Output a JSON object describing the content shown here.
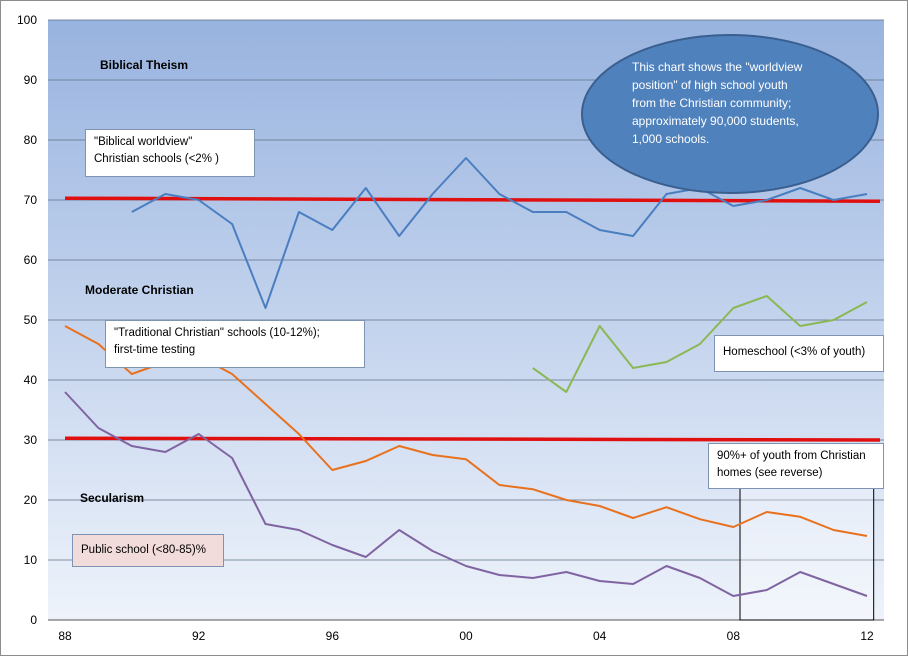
{
  "chart_data": {
    "type": "line",
    "xlim": [
      1988,
      2012
    ],
    "ylim": [
      0,
      100
    ],
    "x_ticks": [
      {
        "value": 1988,
        "label": "88"
      },
      {
        "value": 1992,
        "label": "92"
      },
      {
        "value": 1996,
        "label": "96"
      },
      {
        "value": 2000,
        "label": "00"
      },
      {
        "value": 2004,
        "label": "04"
      },
      {
        "value": 2008,
        "label": "08"
      },
      {
        "value": 2012,
        "label": "12"
      }
    ],
    "y_ticks": [
      0,
      10,
      20,
      30,
      40,
      50,
      60,
      70,
      80,
      90,
      100
    ],
    "grid": true,
    "series": [
      {
        "color": "#4a7ec0",
        "points": [
          [
            1990,
            68
          ],
          [
            1991,
            71
          ],
          [
            1992,
            70
          ],
          [
            1993,
            66
          ],
          [
            1994,
            52
          ],
          [
            1995,
            68
          ],
          [
            1996,
            65
          ],
          [
            1997,
            72
          ],
          [
            1998,
            64
          ],
          [
            1999,
            71
          ],
          [
            2000,
            77
          ],
          [
            2001,
            71
          ],
          [
            2002,
            68
          ],
          [
            2003,
            68
          ],
          [
            2004,
            65
          ],
          [
            2005,
            64
          ],
          [
            2006,
            71
          ],
          [
            2007,
            72
          ],
          [
            2008,
            69
          ],
          [
            2009,
            70
          ],
          [
            2010,
            72
          ],
          [
            2011,
            70
          ],
          [
            2012,
            71
          ]
        ]
      },
      {
        "color": "#e8711e",
        "points": [
          [
            1988,
            49
          ],
          [
            1989,
            46
          ],
          [
            1990,
            41
          ],
          [
            1991,
            43
          ],
          [
            1992,
            44
          ],
          [
            1993,
            41
          ],
          [
            1994,
            36
          ],
          [
            1995,
            31
          ],
          [
            1996,
            25
          ],
          [
            1997,
            26.5
          ],
          [
            1998,
            29
          ],
          [
            1999,
            27.5
          ],
          [
            2000,
            26.8
          ],
          [
            2001,
            22.5
          ],
          [
            2002,
            21.8
          ],
          [
            2003,
            20
          ],
          [
            2004,
            19
          ],
          [
            2005,
            17
          ],
          [
            2006,
            18.8
          ],
          [
            2007,
            16.8
          ],
          [
            2008,
            15.5
          ],
          [
            2009,
            18
          ],
          [
            2010,
            17.2
          ],
          [
            2011,
            15
          ],
          [
            2012,
            14
          ]
        ]
      },
      {
        "color": "#8064a2",
        "points": [
          [
            1988,
            38
          ],
          [
            1989,
            32
          ],
          [
            1990,
            29
          ],
          [
            1991,
            28
          ],
          [
            1992,
            31
          ],
          [
            1993,
            27
          ],
          [
            1994,
            16
          ],
          [
            1995,
            15
          ],
          [
            1996,
            12.5
          ],
          [
            1997,
            10.5
          ],
          [
            1998,
            15
          ],
          [
            1999,
            11.5
          ],
          [
            2000,
            9
          ],
          [
            2001,
            7.5
          ],
          [
            2002,
            7
          ],
          [
            2003,
            8
          ],
          [
            2004,
            6.5
          ],
          [
            2005,
            6
          ],
          [
            2006,
            9
          ],
          [
            2007,
            7
          ],
          [
            2008,
            4
          ],
          [
            2009,
            5
          ],
          [
            2010,
            8
          ],
          [
            2011,
            6
          ],
          [
            2012,
            4
          ]
        ]
      },
      {
        "color": "#8ab854",
        "points": [
          [
            2002,
            42
          ],
          [
            2003,
            38
          ],
          [
            2004,
            49
          ],
          [
            2005,
            42
          ],
          [
            2006,
            43
          ],
          [
            2007,
            46
          ],
          [
            2008,
            52
          ],
          [
            2009,
            54
          ],
          [
            2010,
            49
          ],
          [
            2011,
            50
          ],
          [
            2012,
            53
          ]
        ]
      }
    ],
    "reference_lines": [
      {
        "color": "#e01010",
        "y_start": 70.3,
        "y_end": 69.8
      },
      {
        "color": "#e01010",
        "y_start": 30.3,
        "y_end": 30.0
      }
    ],
    "highlight_region": {
      "x": [
        2008.2,
        2012.2
      ],
      "y": [
        0,
        22
      ]
    },
    "band_labels": [
      {
        "text": "Biblical Theism",
        "y": 92.5
      },
      {
        "text": "Moderate Christian",
        "y": 55
      },
      {
        "text": "Secularism",
        "y": 20.3
      }
    ],
    "callout_oval": {
      "lines": [
        "This chart shows the \"worldview",
        "position\" of high school youth",
        "from the Christian community;",
        "approximately 90,000 students,",
        "1,000 schools."
      ],
      "fill": "#4f81bd"
    },
    "annotations": [
      {
        "id": "biblical-worldview",
        "lines": [
          "\"Biblical worldview\"",
          "Christian schools (<2% )"
        ],
        "fill": "#ffffff"
      },
      {
        "id": "traditional-christian",
        "lines": [
          "\"Traditional Christian\" schools (10-12%);",
          "first-time testing"
        ],
        "fill": "#ffffff"
      },
      {
        "id": "homeschool",
        "lines": [
          "Homeschool (<3% of youth)"
        ],
        "fill": "#ffffff"
      },
      {
        "id": "christian-homes",
        "lines": [
          "90%+ of youth from Christian",
          "homes (see reverse)"
        ],
        "fill": "#ffffff"
      },
      {
        "id": "public-school",
        "lines": [
          "Public school (<80-85)%"
        ],
        "fill": "#f2dcdb"
      }
    ]
  }
}
